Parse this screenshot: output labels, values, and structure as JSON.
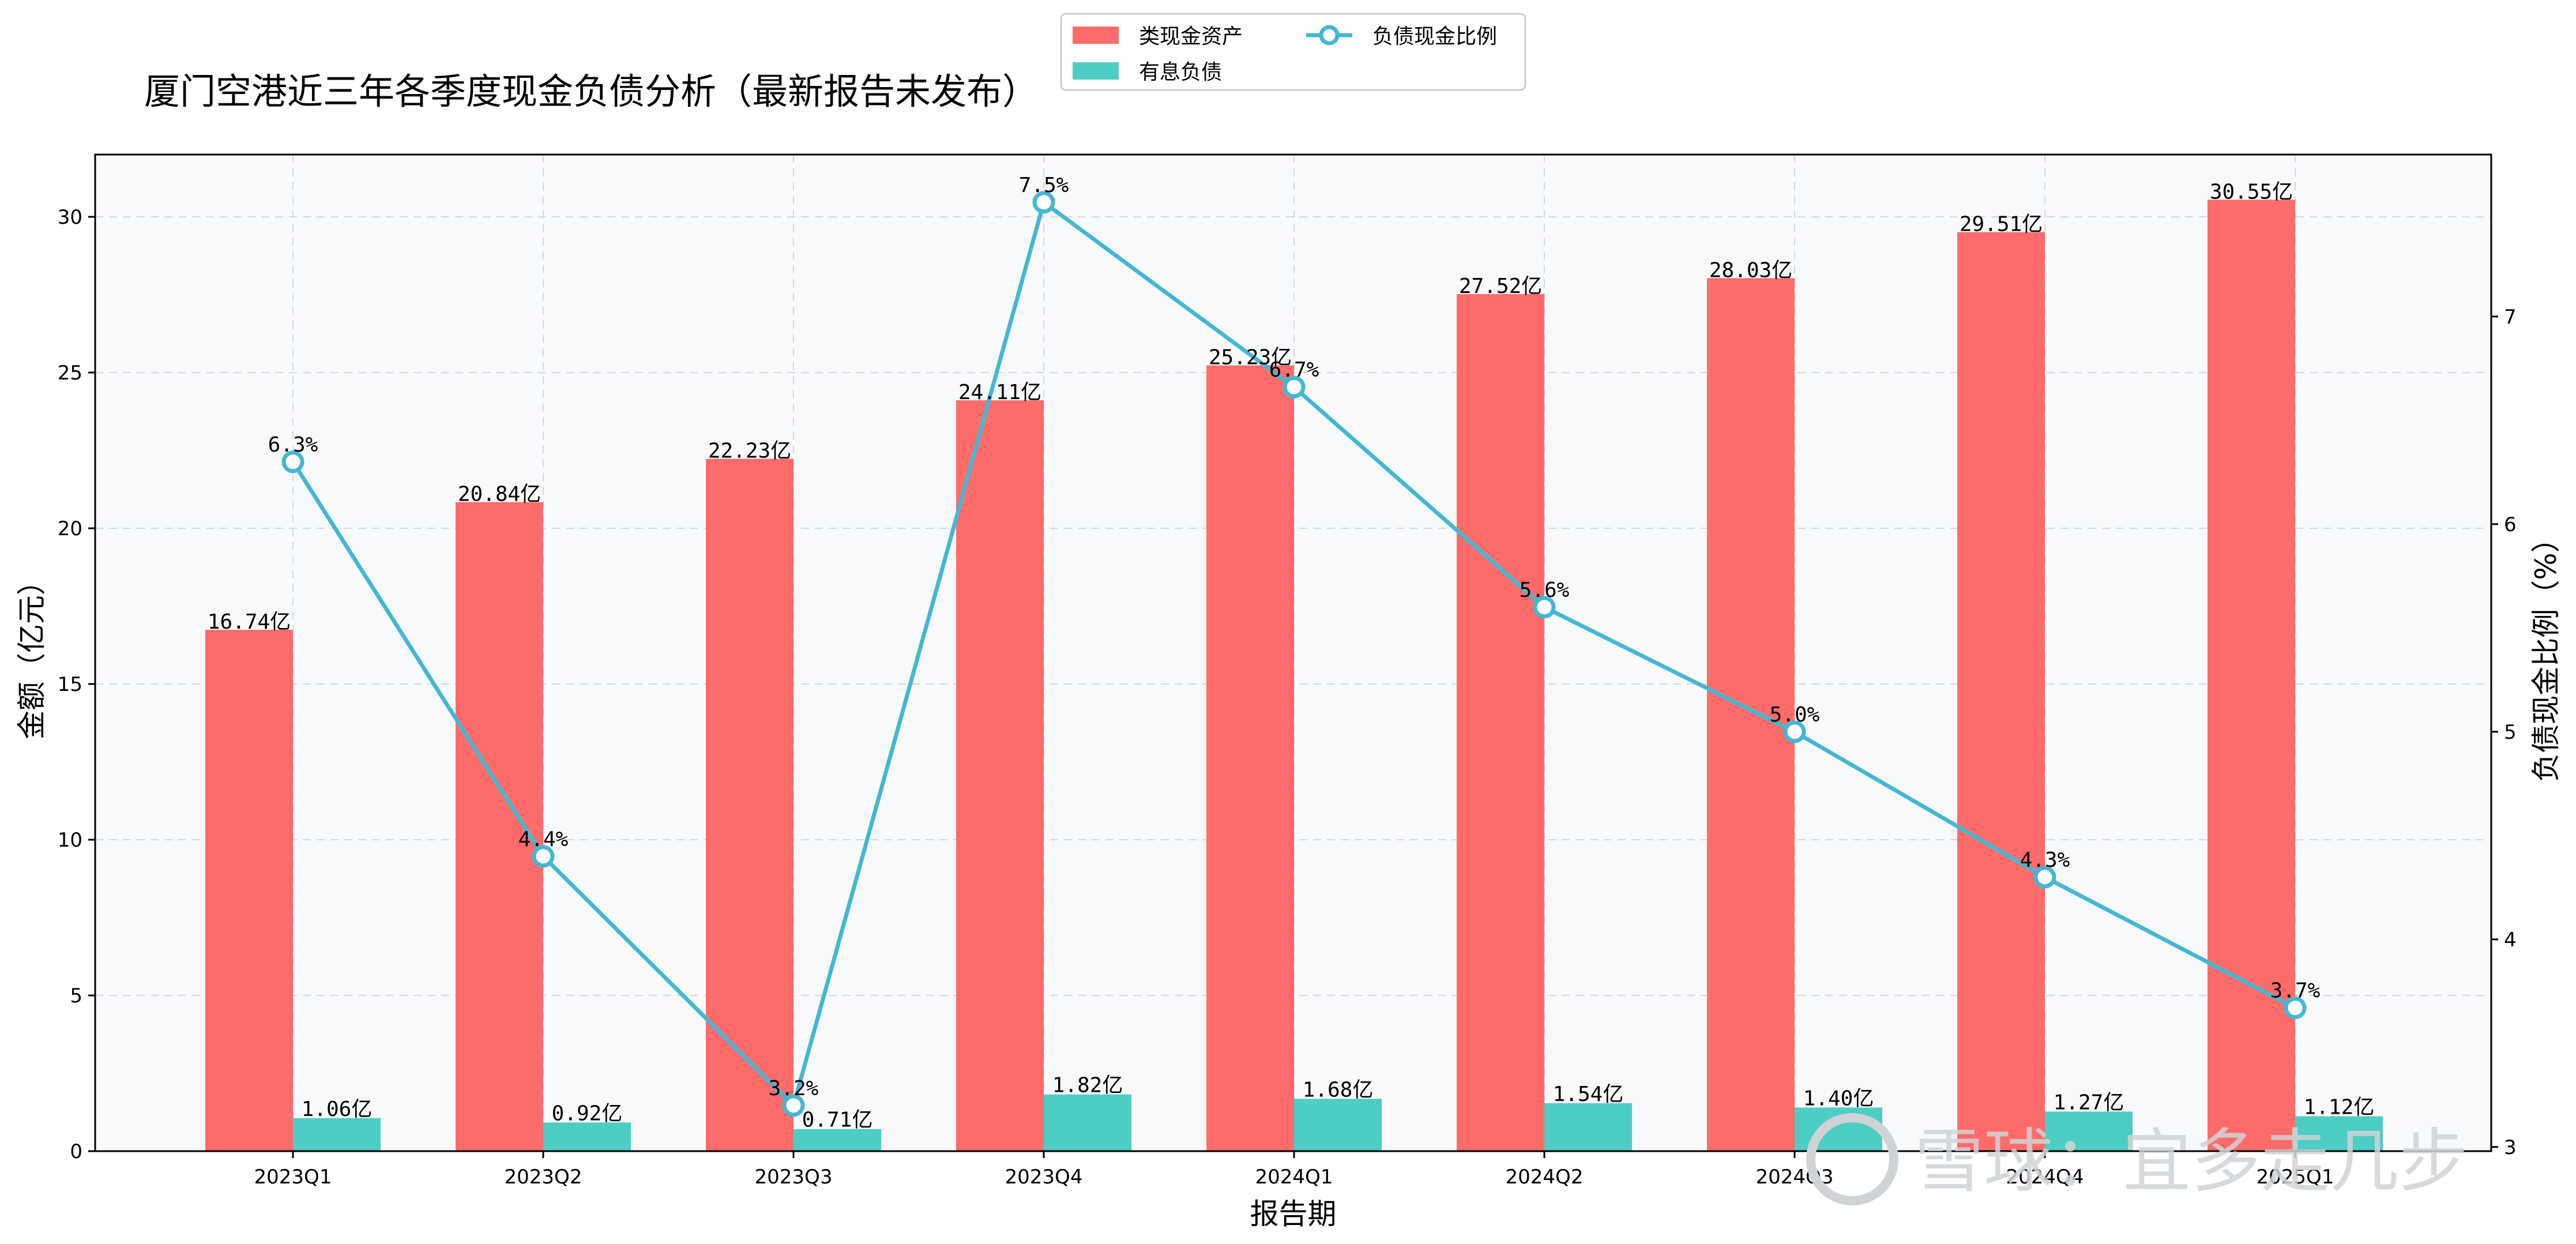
{
  "chart_data": {
    "type": "bar",
    "title": "厦门空港近三年各季度现金负债分析（最新报告未发布）",
    "xlabel": "报告期",
    "ylabel_left": "金额（亿元）",
    "ylabel_right": "负债现金比例（%）",
    "categories": [
      "2023Q1",
      "2023Q2",
      "2023Q3",
      "2023Q4",
      "2024Q1",
      "2024Q2",
      "2024Q3",
      "2024Q4",
      "2025Q1"
    ],
    "series": [
      {
        "name": "类现金资产",
        "type": "bar",
        "axis": "left",
        "color": "#ff6b6b",
        "values": [
          16.74,
          20.84,
          22.23,
          24.11,
          25.23,
          27.52,
          28.03,
          29.51,
          30.55
        ],
        "labels": [
          "16.74亿",
          "20.84亿",
          "22.23亿",
          "24.11亿",
          "25.23亿",
          "27.52亿",
          "28.03亿",
          "29.51亿",
          "30.55亿"
        ]
      },
      {
        "name": "有息负债",
        "type": "bar",
        "axis": "left",
        "color": "#4ecdc4",
        "values": [
          1.06,
          0.92,
          0.71,
          1.82,
          1.68,
          1.54,
          1.4,
          1.27,
          1.12
        ],
        "labels": [
          "1.06亿",
          "0.92亿",
          "0.71亿",
          "1.82亿",
          "1.68亿",
          "1.54亿",
          "1.40亿",
          "1.27亿",
          "1.12亿"
        ]
      },
      {
        "name": "负债现金比例",
        "type": "line",
        "axis": "right",
        "color": "#45b7d1",
        "values": [
          6.3,
          4.4,
          3.2,
          7.55,
          6.66,
          5.6,
          5.0,
          4.3,
          3.67
        ],
        "labels": [
          "6.3%",
          "4.4%",
          "3.2%",
          "7.5%",
          "6.7%",
          "5.6%",
          "5.0%",
          "4.3%",
          "3.7%"
        ]
      }
    ],
    "ylim_left": [
      0,
      32
    ],
    "yticks_left": [
      "0",
      "5",
      "10",
      "15",
      "20",
      "25",
      "30"
    ],
    "ylim_right": [
      2.98,
      7.78
    ],
    "yticks_right": [
      "3",
      "4",
      "5",
      "6",
      "7"
    ],
    "grid": true,
    "legend_position": "top-center"
  },
  "watermark": {
    "text": "雪球：宜多走几步"
  }
}
